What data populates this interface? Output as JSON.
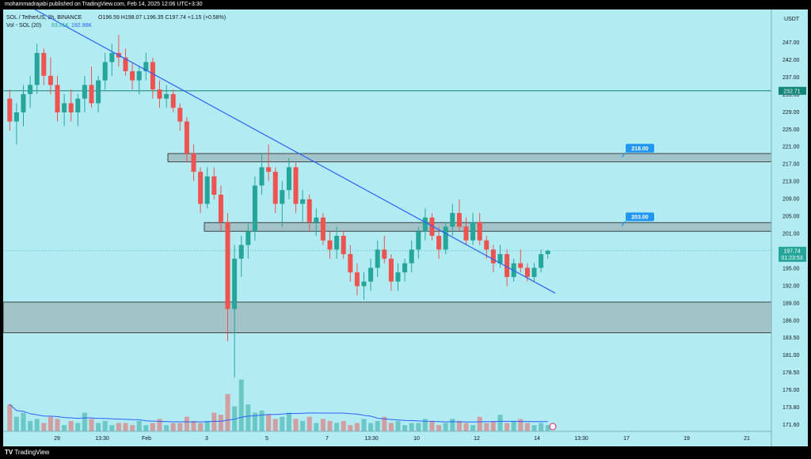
{
  "publish_line": "mohammadrajabi published on TradingView.com, Feb 14, 2025 12:06 UTC+3:30",
  "legend": {
    "symbol_line_prefix": "SOL / TetherUS, 2h, BINANCE",
    "ohlc": "O196.59 H198.07 L196.35 C197.74 +1.15 (+0.58%)",
    "vol_label": "Vol - SOL (20)",
    "vol_value_1": "83.01K",
    "vol_value_2": "192.98K"
  },
  "brand": "TradingView",
  "colors": {
    "background": "#b2ebf2",
    "up": "#26a69a",
    "down": "#ef5350",
    "trendline": "#2962ff",
    "zone_fill": "#9fbcbf",
    "h_line": "#138577",
    "label_blue": "#2196f3",
    "vol_ma": "#2962ff"
  },
  "chart_data": {
    "type": "candlestick",
    "currency": "USDT",
    "ylim": [
      169.5,
      250.5
    ],
    "y_ticks": [
      "247.00",
      "242.00",
      "237.00",
      "233.00",
      "229.00",
      "225.00",
      "221.00",
      "217.00",
      "213.00",
      "209.00",
      "205.00",
      "201.00",
      "197.00",
      "195.00",
      "192.00",
      "189.00",
      "186.00",
      "183.50",
      "181.00",
      "178.50",
      "176.00",
      "173.80",
      "171.60"
    ],
    "x_ticks": [
      "29",
      "13:30",
      "Feb",
      "3",
      "5",
      "7",
      "13:30",
      "10",
      "12",
      "14",
      "13:30",
      "17",
      "19",
      "21"
    ],
    "candles": [
      {
        "o": 231,
        "h": 233,
        "l": 224,
        "c": 226
      },
      {
        "o": 226,
        "h": 230,
        "l": 221,
        "c": 228
      },
      {
        "o": 228,
        "h": 234,
        "l": 225,
        "c": 232
      },
      {
        "o": 232,
        "h": 236,
        "l": 229,
        "c": 234
      },
      {
        "o": 234,
        "h": 243,
        "l": 232,
        "c": 241
      },
      {
        "o": 241,
        "h": 242,
        "l": 234,
        "c": 236
      },
      {
        "o": 236,
        "h": 240,
        "l": 232,
        "c": 234
      },
      {
        "o": 234,
        "h": 236,
        "l": 226,
        "c": 228
      },
      {
        "o": 228,
        "h": 232,
        "l": 225,
        "c": 230
      },
      {
        "o": 230,
        "h": 233,
        "l": 226,
        "c": 228
      },
      {
        "o": 228,
        "h": 232,
        "l": 225,
        "c": 231
      },
      {
        "o": 231,
        "h": 236,
        "l": 228,
        "c": 234
      },
      {
        "o": 234,
        "h": 238,
        "l": 229,
        "c": 230
      },
      {
        "o": 230,
        "h": 236,
        "l": 228,
        "c": 235
      },
      {
        "o": 235,
        "h": 241,
        "l": 233,
        "c": 239
      },
      {
        "o": 239,
        "h": 243,
        "l": 236,
        "c": 241
      },
      {
        "o": 241,
        "h": 245,
        "l": 238,
        "c": 240
      },
      {
        "o": 240,
        "h": 242,
        "l": 236,
        "c": 237
      },
      {
        "o": 237,
        "h": 239,
        "l": 233,
        "c": 235
      },
      {
        "o": 235,
        "h": 238,
        "l": 232,
        "c": 237
      },
      {
        "o": 237,
        "h": 241,
        "l": 235,
        "c": 239
      },
      {
        "o": 239,
        "h": 240,
        "l": 231,
        "c": 233
      },
      {
        "o": 233,
        "h": 235,
        "l": 229,
        "c": 231
      },
      {
        "o": 231,
        "h": 234,
        "l": 229,
        "c": 232
      },
      {
        "o": 232,
        "h": 233,
        "l": 228,
        "c": 229
      },
      {
        "o": 229,
        "h": 230,
        "l": 224,
        "c": 226
      },
      {
        "o": 226,
        "h": 227,
        "l": 217,
        "c": 219
      },
      {
        "o": 219,
        "h": 221,
        "l": 213,
        "c": 215
      },
      {
        "o": 215,
        "h": 216,
        "l": 206,
        "c": 208
      },
      {
        "o": 208,
        "h": 216,
        "l": 207,
        "c": 214
      },
      {
        "o": 214,
        "h": 216,
        "l": 209,
        "c": 210
      },
      {
        "o": 210,
        "h": 212,
        "l": 202,
        "c": 204
      },
      {
        "o": 204,
        "h": 206,
        "l": 178,
        "c": 185
      },
      {
        "o": 185,
        "h": 199,
        "l": 170,
        "c": 196
      },
      {
        "o": 196,
        "h": 201,
        "l": 192,
        "c": 199
      },
      {
        "o": 199,
        "h": 204,
        "l": 196,
        "c": 202
      },
      {
        "o": 202,
        "h": 214,
        "l": 200,
        "c": 212
      },
      {
        "o": 212,
        "h": 219,
        "l": 210,
        "c": 216
      },
      {
        "o": 216,
        "h": 221,
        "l": 213,
        "c": 215
      },
      {
        "o": 215,
        "h": 216,
        "l": 206,
        "c": 208
      },
      {
        "o": 208,
        "h": 213,
        "l": 203,
        "c": 211
      },
      {
        "o": 211,
        "h": 218,
        "l": 209,
        "c": 216
      },
      {
        "o": 216,
        "h": 217,
        "l": 206,
        "c": 208
      },
      {
        "o": 208,
        "h": 211,
        "l": 204,
        "c": 209
      },
      {
        "o": 209,
        "h": 210,
        "l": 202,
        "c": 204
      },
      {
        "o": 204,
        "h": 207,
        "l": 201,
        "c": 205
      },
      {
        "o": 205,
        "h": 206,
        "l": 199,
        "c": 200
      },
      {
        "o": 200,
        "h": 202,
        "l": 196,
        "c": 198
      },
      {
        "o": 198,
        "h": 203,
        "l": 196,
        "c": 201
      },
      {
        "o": 201,
        "h": 202,
        "l": 196,
        "c": 197
      },
      {
        "o": 197,
        "h": 199,
        "l": 191,
        "c": 193
      },
      {
        "o": 193,
        "h": 195,
        "l": 188,
        "c": 190
      },
      {
        "o": 190,
        "h": 193,
        "l": 187,
        "c": 191
      },
      {
        "o": 191,
        "h": 196,
        "l": 189,
        "c": 194
      },
      {
        "o": 194,
        "h": 200,
        "l": 192,
        "c": 198
      },
      {
        "o": 198,
        "h": 201,
        "l": 195,
        "c": 196
      },
      {
        "o": 196,
        "h": 197,
        "l": 189,
        "c": 191
      },
      {
        "o": 191,
        "h": 195,
        "l": 189,
        "c": 193
      },
      {
        "o": 193,
        "h": 196,
        "l": 191,
        "c": 195
      },
      {
        "o": 195,
        "h": 200,
        "l": 193,
        "c": 198
      },
      {
        "o": 198,
        "h": 203,
        "l": 196,
        "c": 202
      },
      {
        "o": 202,
        "h": 207,
        "l": 200,
        "c": 205
      },
      {
        "o": 205,
        "h": 206,
        "l": 200,
        "c": 201
      },
      {
        "o": 201,
        "h": 203,
        "l": 196,
        "c": 198
      },
      {
        "o": 198,
        "h": 204,
        "l": 197,
        "c": 203
      },
      {
        "o": 203,
        "h": 208,
        "l": 201,
        "c": 206
      },
      {
        "o": 206,
        "h": 209,
        "l": 202,
        "c": 203
      },
      {
        "o": 203,
        "h": 205,
        "l": 199,
        "c": 200
      },
      {
        "o": 200,
        "h": 206,
        "l": 199,
        "c": 204
      },
      {
        "o": 204,
        "h": 206,
        "l": 199,
        "c": 200
      },
      {
        "o": 200,
        "h": 201,
        "l": 196,
        "c": 198
      },
      {
        "o": 198,
        "h": 199,
        "l": 193,
        "c": 195
      },
      {
        "o": 195,
        "h": 199,
        "l": 194,
        "c": 197
      },
      {
        "o": 197,
        "h": 198,
        "l": 190,
        "c": 192
      },
      {
        "o": 192,
        "h": 196,
        "l": 191,
        "c": 195
      },
      {
        "o": 195,
        "h": 198,
        "l": 193,
        "c": 194
      },
      {
        "o": 194,
        "h": 195,
        "l": 191,
        "c": 192
      },
      {
        "o": 192,
        "h": 195,
        "l": 191,
        "c": 194
      },
      {
        "o": 194,
        "h": 198,
        "l": 193,
        "c": 197
      },
      {
        "o": 197,
        "h": 198,
        "l": 196,
        "c": 197.74
      }
    ],
    "volumes": [
      13,
      7,
      9,
      5,
      6,
      4,
      7,
      6,
      3,
      5,
      4,
      9,
      6,
      4,
      5,
      3,
      4,
      4,
      3,
      5,
      3,
      4,
      6,
      3,
      4,
      4,
      7,
      5,
      4,
      5,
      9,
      8,
      18,
      12,
      25,
      13,
      9,
      10,
      8,
      6,
      7,
      9,
      6,
      5,
      7,
      4,
      6,
      5,
      4,
      5,
      3,
      4,
      6,
      4,
      5,
      7,
      4,
      5,
      3,
      4,
      4,
      6,
      5,
      3,
      4,
      6,
      5,
      4,
      3,
      7,
      4,
      5,
      8,
      4,
      5,
      6,
      4,
      3,
      4,
      3
    ],
    "volume_ylim": [
      0,
      26
    ],
    "trendline": {
      "from_index": 0,
      "from_price": 250.5,
      "to_index": 79,
      "to_price": 189.5
    },
    "zones": [
      {
        "low": 217.2,
        "high": 219.0
      },
      {
        "low": 202.0,
        "high": 203.9
      },
      {
        "low": 179.8,
        "high": 186.5
      }
    ],
    "horizontal_line": {
      "price": 232.71,
      "label": "232.71"
    },
    "annotations": [
      {
        "label": "218.00",
        "price": 218.0
      },
      {
        "label": "203.00",
        "price": 203.0
      }
    ],
    "last_price": {
      "value": "197.74",
      "countdown": "01:23:53"
    }
  }
}
